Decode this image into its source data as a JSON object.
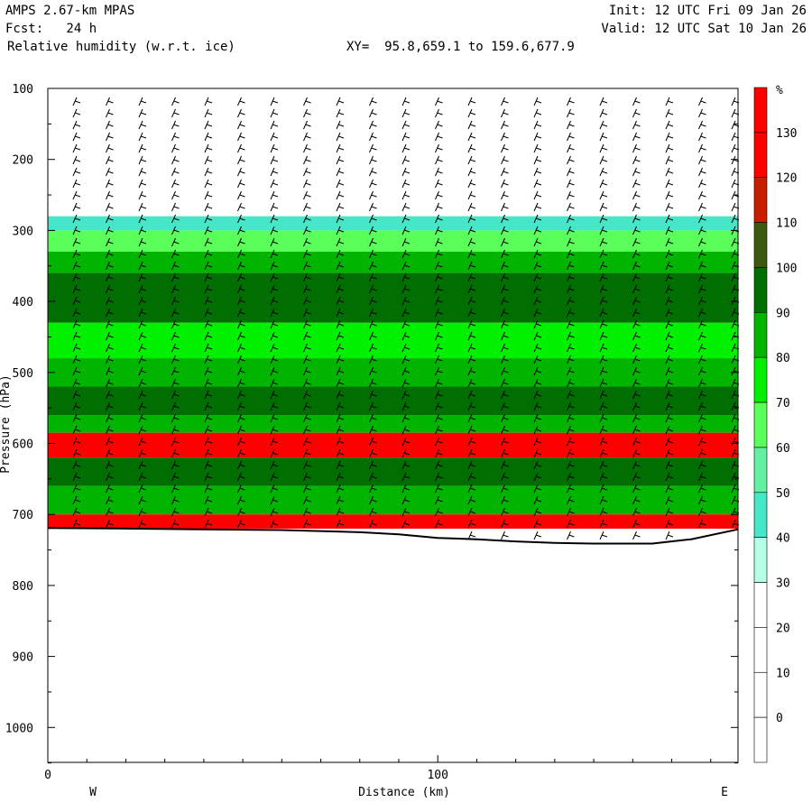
{
  "header": {
    "model": "AMPS 2.67-km MPAS",
    "init": "Init: 12 UTC Fri 09 Jan 26",
    "fcst": "Fcst:   24 h",
    "valid": "Valid: 12 UTC Sat 10 Jan 26",
    "field": "Relative humidity (w.r.t. ice)",
    "xy": "XY=  95.8,659.1 to 159.6,677.9"
  },
  "chart_data": {
    "type": "heatmap",
    "title": "Relative humidity (w.r.t. ice)",
    "xlabel": "Distance (km)",
    "ylabel": "Pressure (hPa)",
    "xlim": [
      0,
      177
    ],
    "ylim": [
      100,
      1050
    ],
    "x_ticks": [
      0,
      100
    ],
    "x_tick_labels": [
      "0",
      "100"
    ],
    "y_ticks": [
      100,
      200,
      300,
      400,
      500,
      600,
      700,
      800,
      900,
      1000
    ],
    "y_tick_labels": [
      "100",
      "200",
      "300",
      "400",
      "500",
      "600",
      "700",
      "800",
      "900",
      "1000"
    ],
    "x_end_labels": {
      "left": "W",
      "right": "E"
    },
    "colorbar": {
      "unit": "%",
      "levels": [
        130,
        120,
        110,
        100,
        90,
        80,
        70,
        60,
        50,
        40,
        30,
        20,
        10,
        0
      ],
      "colors": [
        "#ff0000",
        "#ff0000",
        "#c81e00",
        "#3c5a0f",
        "#006e00",
        "#00b400",
        "#00f000",
        "#5aff5a",
        "#64f0a0",
        "#46e6c8",
        "#b4ffe6",
        "#ffffff",
        "#ffffff",
        "#ffffff",
        "#ffffff"
      ]
    },
    "terrain_pressure": [
      [
        0,
        719
      ],
      [
        20,
        720
      ],
      [
        40,
        721
      ],
      [
        60,
        722
      ],
      [
        80,
        725
      ],
      [
        90,
        728
      ],
      [
        100,
        733
      ],
      [
        110,
        735
      ],
      [
        120,
        738
      ],
      [
        130,
        740
      ],
      [
        140,
        741
      ],
      [
        155,
        741
      ],
      [
        165,
        735
      ],
      [
        177,
        721
      ]
    ],
    "rh_layers": [
      {
        "p_top": 280,
        "p_bot": 300,
        "rh": 40
      },
      {
        "p_top": 300,
        "p_bot": 330,
        "rh": 60
      },
      {
        "p_top": 330,
        "p_bot": 360,
        "rh": 80
      },
      {
        "p_top": 360,
        "p_bot": 430,
        "rh": 95
      },
      {
        "p_top": 430,
        "p_bot": 480,
        "rh": 75
      },
      {
        "p_top": 480,
        "p_bot": 520,
        "rh": 85
      },
      {
        "p_top": 520,
        "p_bot": 560,
        "rh": 95
      },
      {
        "p_top": 560,
        "p_bot": 585,
        "rh": 85
      },
      {
        "p_top": 585,
        "p_bot": 620,
        "rh": 125
      },
      {
        "p_top": 620,
        "p_bot": 660,
        "rh": 95
      },
      {
        "p_top": 660,
        "p_bot": 700,
        "rh": 80
      },
      {
        "p_top": 700,
        "p_bot": 720,
        "rh": 125
      }
    ],
    "grid": false,
    "legend": "right colorbar"
  }
}
